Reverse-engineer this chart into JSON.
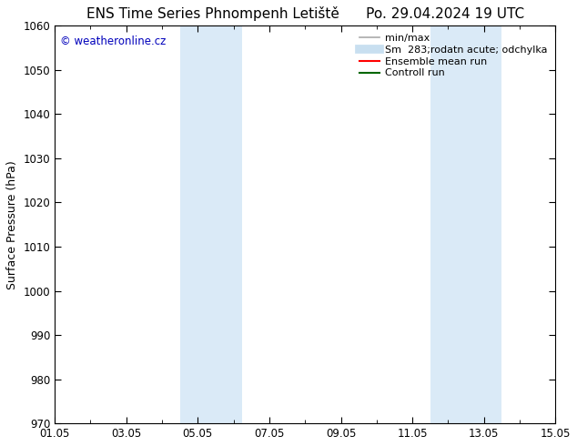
{
  "title": "ENS Time Series Phnompenh Letiště      Po. 29.04.2024 19 UTC",
  "ylabel": "Surface Pressure (hPa)",
  "ylim": [
    970,
    1060
  ],
  "yticks": [
    970,
    980,
    990,
    1000,
    1010,
    1020,
    1030,
    1040,
    1050,
    1060
  ],
  "xtick_labels": [
    "01.05",
    "03.05",
    "05.05",
    "07.05",
    "09.05",
    "11.05",
    "13.05",
    "15.05"
  ],
  "xtick_positions": [
    0,
    2,
    4,
    6,
    8,
    10,
    12,
    14
  ],
  "xlim": [
    0,
    14
  ],
  "shaded_bands": [
    {
      "x_start": 3.5,
      "x_end": 5.25,
      "color": "#daeaf7"
    },
    {
      "x_start": 10.5,
      "x_end": 12.5,
      "color": "#daeaf7"
    }
  ],
  "watermark_text": "© weatheronline.cz",
  "watermark_color": "#0000bb",
  "legend_entries": [
    {
      "label": "min/max",
      "color": "#aaaaaa",
      "linestyle": "-",
      "linewidth": 1.2
    },
    {
      "label": "Sm  283;rodatn acute; odchylka",
      "color": "#c8dff0",
      "linestyle": "-",
      "linewidth": 7
    },
    {
      "label": "Ensemble mean run",
      "color": "#ff0000",
      "linestyle": "-",
      "linewidth": 1.5
    },
    {
      "label": "Controll run",
      "color": "#006600",
      "linestyle": "-",
      "linewidth": 1.5
    }
  ],
  "background_color": "#ffffff",
  "tick_color": "#000000",
  "title_fontsize": 11,
  "axis_label_fontsize": 9,
  "legend_fontsize": 8
}
